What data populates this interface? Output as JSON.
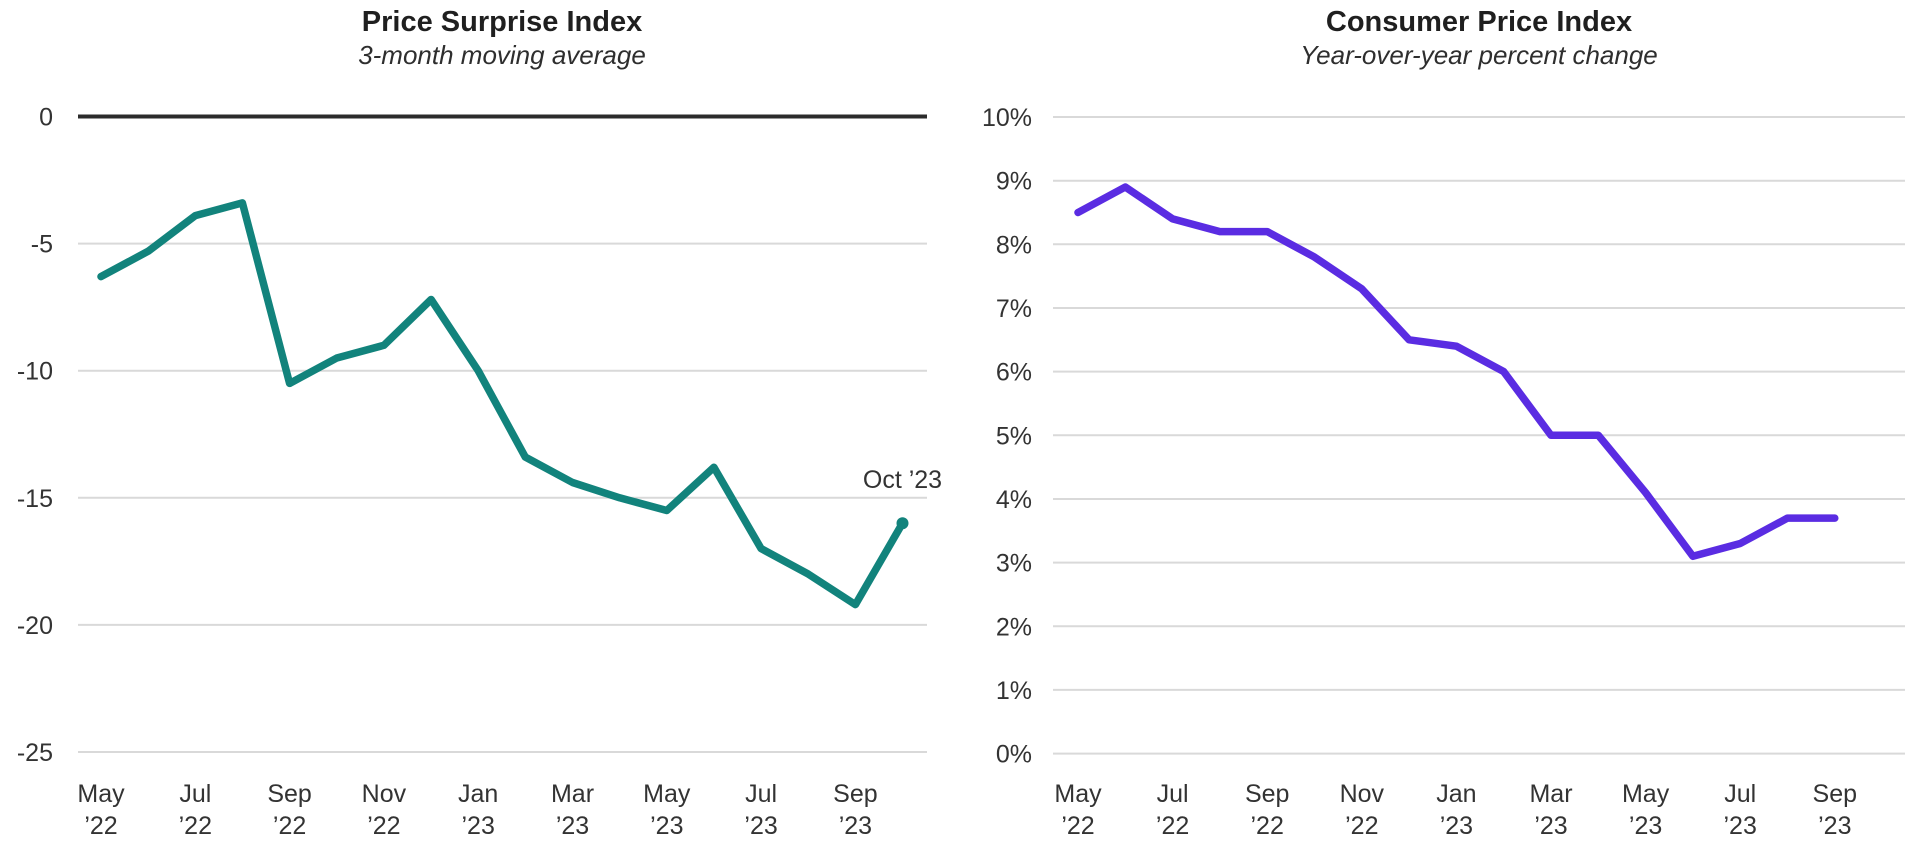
{
  "page": {
    "background": "#ffffff",
    "grid_color": "#d9d9d9",
    "zero_line_color": "#2b2b2b",
    "text_color": "#333333"
  },
  "chart_data": [
    {
      "type": "line",
      "title": "Price Surprise Index",
      "subtitle": "3-month moving average",
      "line_color": "#12837c",
      "x": [
        "May ’22",
        "Jun ’22",
        "Jul ’22",
        "Aug ’22",
        "Sep ’22",
        "Oct ’22",
        "Nov ’22",
        "Dec ’22",
        "Jan ’23",
        "Feb ’23",
        "Mar ’23",
        "Apr ’23",
        "May ’23",
        "Jun ’23",
        "Jul ’23",
        "Aug ’23",
        "Sep ’23",
        "Oct ’23"
      ],
      "values": [
        -6.3,
        -5.3,
        -3.9,
        -3.4,
        -10.5,
        -9.5,
        -9.0,
        -7.2,
        -10.0,
        -13.4,
        -14.4,
        -15.0,
        -15.5,
        -13.8,
        -17.0,
        -18.0,
        -19.2,
        -16.0
      ],
      "ylim": [
        -25,
        0
      ],
      "grid": "horizontal",
      "legend": "none",
      "end_dot": true,
      "annotation": {
        "text": "Oct ’23",
        "index": 17
      },
      "yticks": [
        {
          "value": 0,
          "label": "0",
          "emphasis": true
        },
        {
          "value": -5,
          "label": "-5"
        },
        {
          "value": -10,
          "label": "-10"
        },
        {
          "value": -15,
          "label": "-15"
        },
        {
          "value": -20,
          "label": "-20"
        },
        {
          "value": -25,
          "label": "-25"
        }
      ],
      "xticks": [
        {
          "index": 0,
          "line1": "May",
          "line2": "’22"
        },
        {
          "index": 2,
          "line1": "Jul",
          "line2": "’22"
        },
        {
          "index": 4,
          "line1": "Sep",
          "line2": "’22"
        },
        {
          "index": 6,
          "line1": "Nov",
          "line2": "’22"
        },
        {
          "index": 8,
          "line1": "Jan",
          "line2": "’23"
        },
        {
          "index": 10,
          "line1": "Mar",
          "line2": "’23"
        },
        {
          "index": 12,
          "line1": "May",
          "line2": "’23"
        },
        {
          "index": 14,
          "line1": "Jul",
          "line2": "’23"
        },
        {
          "index": 16,
          "line1": "Sep",
          "line2": "’23"
        }
      ]
    },
    {
      "type": "line",
      "title": "Consumer Price Index",
      "subtitle": "Year-over-year percent change",
      "line_color": "#5a2ce2",
      "x": [
        "May ’22",
        "Jun ’22",
        "Jul ’22",
        "Aug ’22",
        "Sep ’22",
        "Oct ’22",
        "Nov ’22",
        "Dec ’22",
        "Jan ’23",
        "Feb ’23",
        "Mar ’23",
        "Apr ’23",
        "May ’23",
        "Jun ’23",
        "Jul ’23",
        "Aug ’23",
        "Sep ’23"
      ],
      "values": [
        8.5,
        8.9,
        8.4,
        8.2,
        8.2,
        7.8,
        7.3,
        6.5,
        6.4,
        6.0,
        5.0,
        5.0,
        4.1,
        3.1,
        3.3,
        3.7,
        3.7
      ],
      "ylim": [
        0,
        10
      ],
      "grid": "horizontal",
      "legend": "none",
      "end_dot": false,
      "annotation": null,
      "yticks": [
        {
          "value": 10,
          "label": "10%"
        },
        {
          "value": 9,
          "label": "9%"
        },
        {
          "value": 8,
          "label": "8%"
        },
        {
          "value": 7,
          "label": "7%"
        },
        {
          "value": 6,
          "label": "6%"
        },
        {
          "value": 5,
          "label": "5%"
        },
        {
          "value": 4,
          "label": "4%"
        },
        {
          "value": 3,
          "label": "3%"
        },
        {
          "value": 2,
          "label": "2%"
        },
        {
          "value": 1,
          "label": "1%"
        },
        {
          "value": 0,
          "label": "0%"
        }
      ],
      "xticks": [
        {
          "index": 0,
          "line1": "May",
          "line2": "’22"
        },
        {
          "index": 2,
          "line1": "Jul",
          "line2": "’22"
        },
        {
          "index": 4,
          "line1": "Sep",
          "line2": "’22"
        },
        {
          "index": 6,
          "line1": "Nov",
          "line2": "’22"
        },
        {
          "index": 8,
          "line1": "Jan",
          "line2": "’23"
        },
        {
          "index": 10,
          "line1": "Mar",
          "line2": "’23"
        },
        {
          "index": 12,
          "line1": "May",
          "line2": "’23"
        },
        {
          "index": 14,
          "line1": "Jul",
          "line2": "’23"
        },
        {
          "index": 16,
          "line1": "Sep",
          "line2": "’23"
        }
      ]
    }
  ]
}
